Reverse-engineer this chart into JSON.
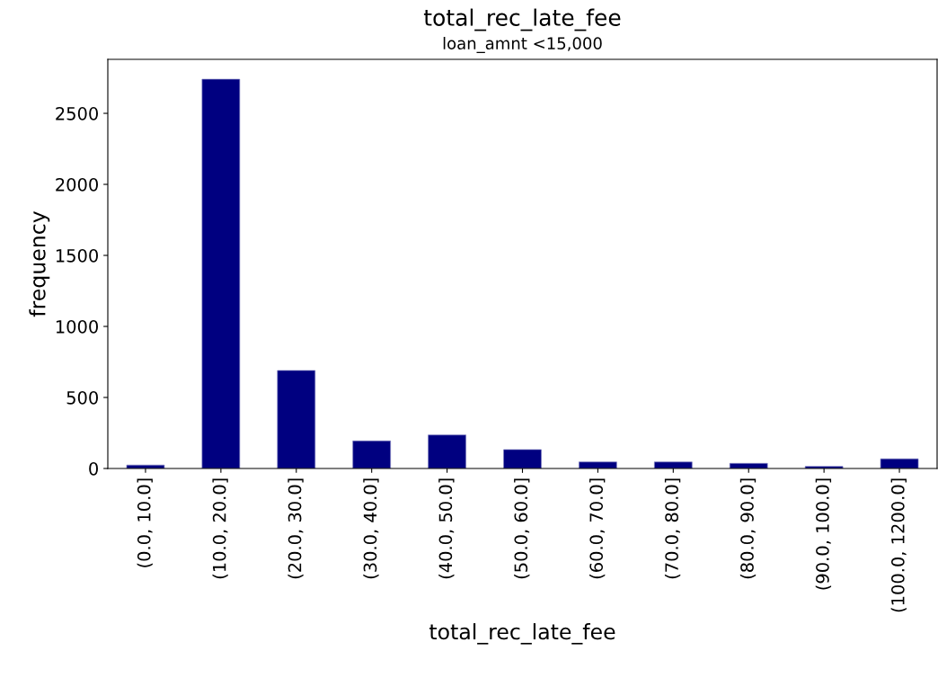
{
  "chart_data": {
    "type": "bar",
    "title": "total_rec_late_fee",
    "subtitle": "loan_amnt <15,000",
    "xlabel": "total_rec_late_fee",
    "ylabel": "frequency",
    "categories": [
      "(0.0, 10.0]",
      "(10.0, 20.0]",
      "(20.0, 30.0]",
      "(30.0, 40.0]",
      "(40.0, 50.0]",
      "(50.0, 60.0]",
      "(60.0, 70.0]",
      "(70.0, 80.0]",
      "(80.0, 90.0]",
      "(90.0, 100.0]",
      "(100.0, 1200.0]"
    ],
    "values": [
      24,
      2740,
      690,
      194,
      236,
      133,
      46,
      46,
      36,
      15,
      68
    ],
    "color": "#000080",
    "ylim": [
      0,
      2880
    ],
    "yticks": [
      0,
      500,
      1000,
      1500,
      2000,
      2500
    ],
    "grid": false,
    "legend": false
  }
}
